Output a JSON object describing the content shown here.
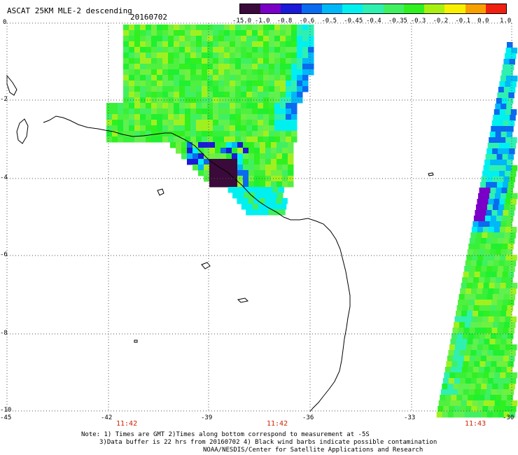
{
  "header": {
    "title": "ASCAT 25KM MLE-2 descending",
    "date": "20160702"
  },
  "colorbar": {
    "labels": [
      "-15.0",
      "-1.0",
      "-0.8",
      "-0.6",
      "-0.5",
      "-0.45",
      "-0.4",
      "-0.35",
      "-0.3",
      "-0.2",
      "-0.1",
      "0.0",
      "1.0"
    ],
    "colors": [
      "#3a0a3a",
      "#7a00c8",
      "#1a1ad8",
      "#0a6af0",
      "#00b8f8",
      "#00f0f0",
      "#2ff0b0",
      "#40f060",
      "#30f020",
      "#a8f010",
      "#f8f000",
      "#f8a000",
      "#f02010"
    ]
  },
  "axes": {
    "y_labels": [
      "0",
      "-2",
      "-4",
      "-6",
      "-8",
      "-10"
    ],
    "x_labels": [
      "-45",
      "-42",
      "-39",
      "-36",
      "-33",
      "-30"
    ],
    "time_labels": [
      "11:42",
      "11:42",
      "11:43"
    ]
  },
  "notes": {
    "line1": "Note: 1) Times are GMT 2)Times along bottom correspond to measurement at -5S",
    "line2": "3)Data buffer is 22 hrs from 20160702 4) Black wind barbs indicate possible contamination",
    "line3": "NOAA/NESDIS/Center for Satellite Applications and Research"
  }
}
